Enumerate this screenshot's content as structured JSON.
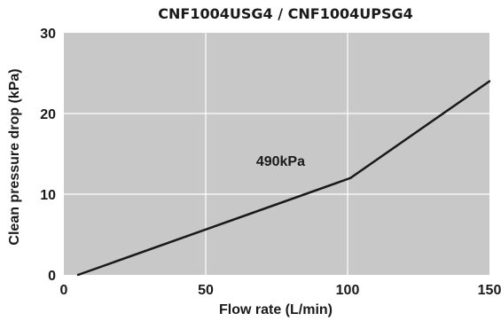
{
  "chart_data": {
    "type": "line",
    "title": "CNF1004USG4 / CNF1004UPSG4",
    "xlabel": "Flow rate (L/min)",
    "ylabel": "Clean pressure drop (kPa)",
    "xlim": [
      0,
      150
    ],
    "ylim": [
      0,
      30
    ],
    "xticks": [
      0,
      50,
      100,
      150
    ],
    "yticks": [
      0,
      10,
      20,
      30
    ],
    "grid": true,
    "colors": {
      "plot_background": "#c8c8c8",
      "grid": "#ffffff",
      "line": "#1a1a1a"
    },
    "series": [
      {
        "x": [
          5,
          101,
          150
        ],
        "y": [
          0,
          12,
          24
        ]
      }
    ],
    "annotations": [
      {
        "text": "490kPa",
        "x": 85,
        "y": 13.5
      }
    ]
  }
}
